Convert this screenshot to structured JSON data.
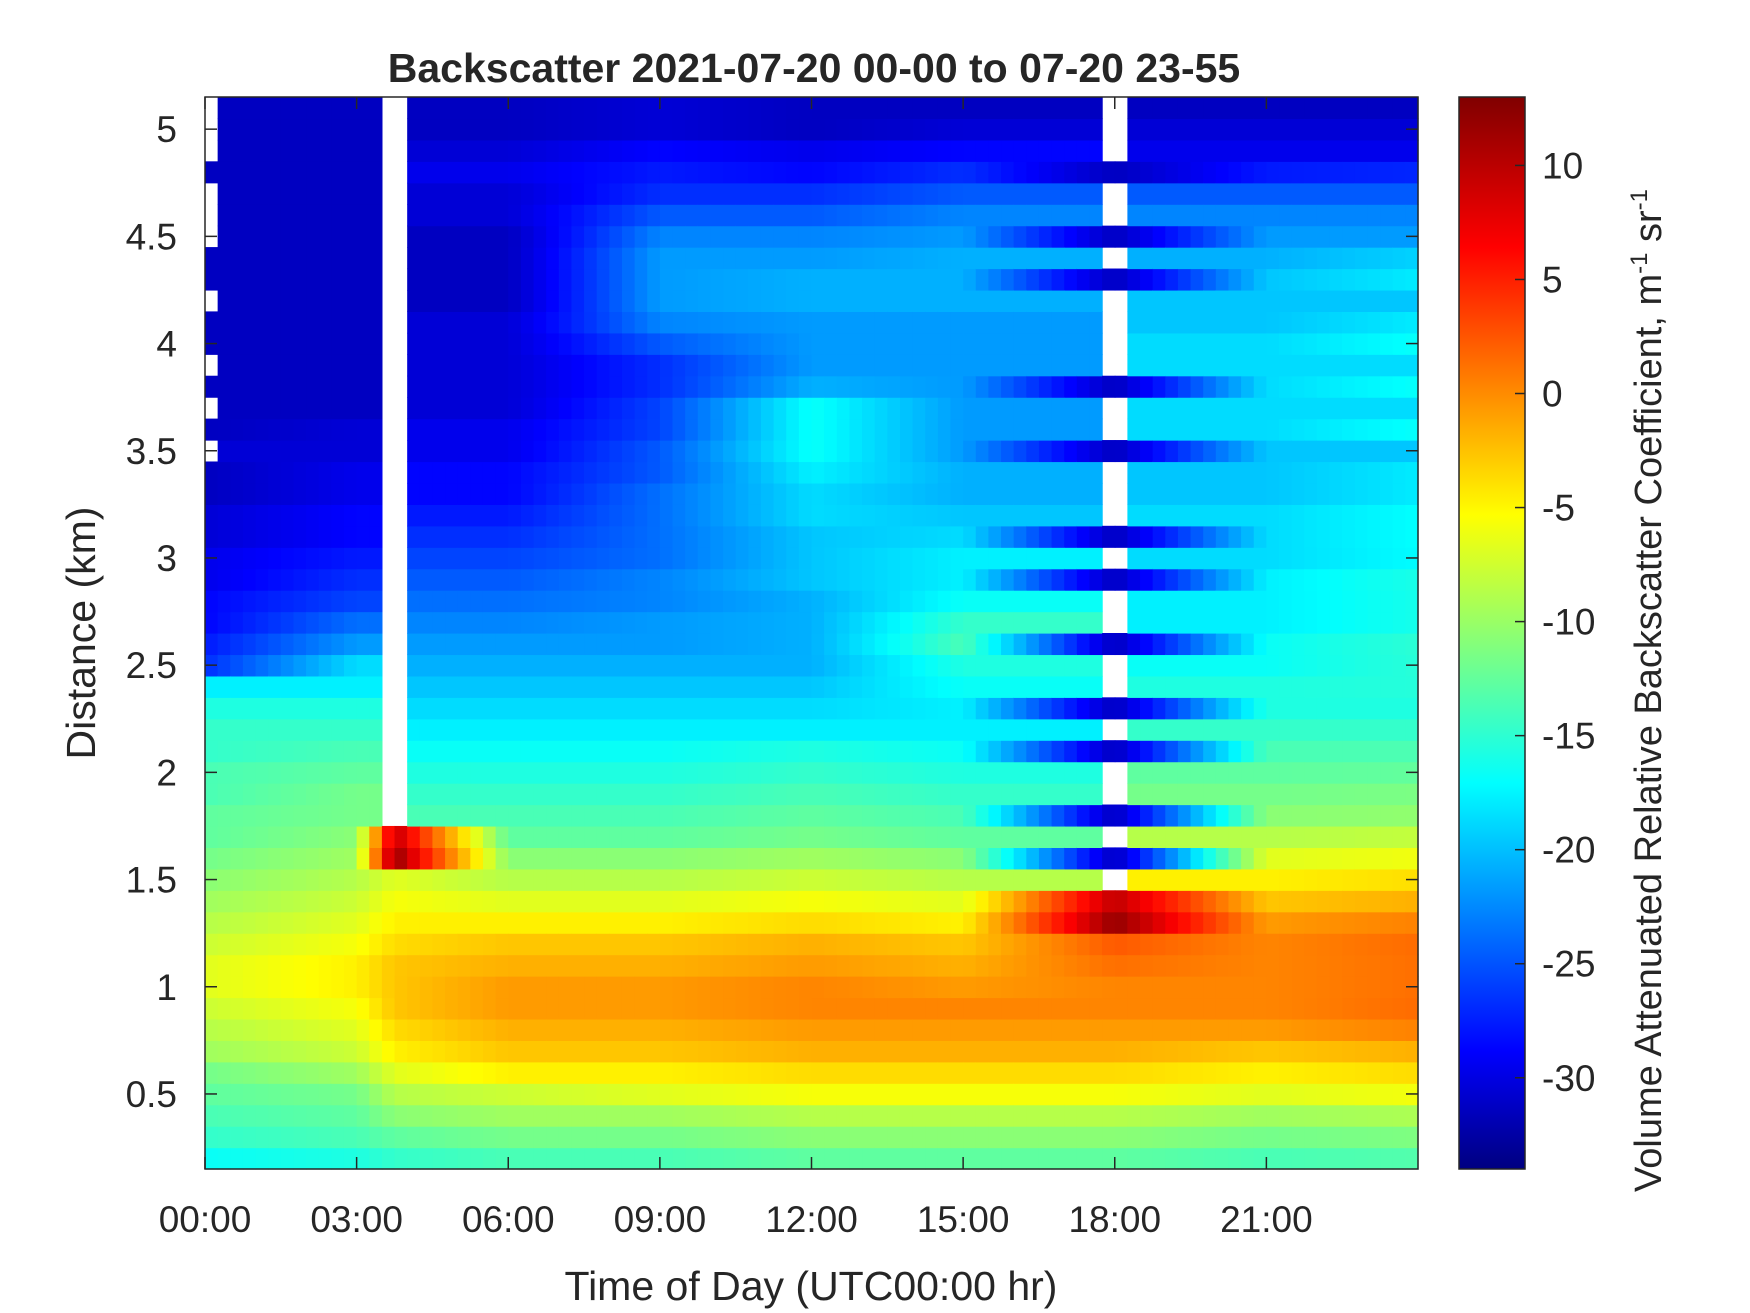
{
  "chart_data": {
    "type": "heatmap",
    "title": "Backscatter 2021-07-20 00-00 to 07-20 23-55",
    "xlabel": "Time of Day (UTC00:00 hr)",
    "ylabel": "Distance (km)",
    "colorbar_label_main": "Volume Attenuated Relative Backscatter Coefficient, m",
    "colorbar_label_exp1": "-1",
    "colorbar_label_mid": " sr",
    "colorbar_label_exp2": "-1",
    "xlim": [
      0,
      24
    ],
    "ylim": [
      0.15,
      5.15
    ],
    "clim": [
      -34,
      13
    ],
    "colormap": "jet",
    "x_ticks": [
      {
        "value": 0,
        "label": "00:00"
      },
      {
        "value": 3,
        "label": "03:00"
      },
      {
        "value": 6,
        "label": "06:00"
      },
      {
        "value": 9,
        "label": "09:00"
      },
      {
        "value": 12,
        "label": "12:00"
      },
      {
        "value": 15,
        "label": "15:00"
      },
      {
        "value": 18,
        "label": "18:00"
      },
      {
        "value": 21,
        "label": "21:00"
      }
    ],
    "y_ticks": [
      {
        "value": 0.5,
        "label": "0.5"
      },
      {
        "value": 1,
        "label": "1"
      },
      {
        "value": 1.5,
        "label": "1.5"
      },
      {
        "value": 2,
        "label": "2"
      },
      {
        "value": 2.5,
        "label": "2.5"
      },
      {
        "value": 3,
        "label": "3"
      },
      {
        "value": 3.5,
        "label": "3.5"
      },
      {
        "value": 4,
        "label": "4"
      },
      {
        "value": 4.5,
        "label": "4.5"
      },
      {
        "value": 5,
        "label": "5"
      }
    ],
    "colorbar_ticks": [
      {
        "value": 10,
        "label": "10"
      },
      {
        "value": 5,
        "label": "5"
      },
      {
        "value": 0,
        "label": "0"
      },
      {
        "value": -5,
        "label": "-5"
      },
      {
        "value": -10,
        "label": "-10"
      },
      {
        "value": -15,
        "label": "-15"
      },
      {
        "value": -20,
        "label": "-20"
      },
      {
        "value": -25,
        "label": "-25"
      },
      {
        "value": -30,
        "label": "-30"
      }
    ],
    "time_step_hr": 0.25,
    "range_gates_km": [
      0.15,
      0.25,
      0.35,
      0.45,
      0.55,
      0.65,
      0.75,
      0.85,
      0.95,
      1.05,
      1.15,
      1.25,
      1.35,
      1.45,
      1.55,
      1.65,
      1.75,
      1.85,
      1.95,
      2.05,
      2.15,
      2.25,
      2.35,
      2.45,
      2.55,
      2.65,
      2.75,
      2.85,
      2.95,
      3.05,
      3.15,
      3.25,
      3.35,
      3.45,
      3.55,
      3.65,
      3.75,
      3.85,
      3.95,
      4.05,
      4.15,
      4.25,
      4.35,
      4.45,
      4.55,
      4.65,
      4.75,
      4.85,
      4.95,
      5.05
    ],
    "profiles": [
      {
        "time_hr": 0,
        "values_db": [
          -16,
          -14,
          -13,
          -12,
          -11,
          -9,
          -8,
          -7,
          -6,
          -6,
          -7,
          -8,
          -9,
          -10,
          -11,
          -12,
          -12,
          -13,
          -13,
          -14,
          -14,
          -15,
          -17,
          -26,
          -27,
          -28,
          -28,
          -29,
          -29,
          -30,
          -30,
          -31,
          -31,
          null,
          -31,
          null,
          -31,
          null,
          -31,
          -31,
          null,
          -31,
          -31,
          null,
          null,
          null,
          -31,
          null,
          null,
          null
        ]
      },
      {
        "time_hr": 3,
        "values_db": [
          -15,
          -13,
          -12,
          -11,
          -9,
          -7,
          -6,
          -5,
          -4,
          -4,
          -5,
          -6,
          -7,
          -8,
          -9,
          -10,
          -11,
          -11,
          -12,
          -13,
          -14,
          -15,
          -17,
          -18,
          -21,
          -23,
          -25,
          -26,
          -27,
          -28,
          -28,
          -29,
          -29,
          -30,
          -30,
          -31,
          -31,
          -31,
          -31,
          -31,
          -31,
          -31,
          -31,
          -31,
          -31,
          -31,
          -31,
          -31,
          -31,
          -31
        ]
      },
      {
        "time_hr": 3.75,
        "values_db": [
          -14,
          -12,
          -10,
          -8,
          -6,
          -4,
          -3,
          -2,
          -2,
          -2,
          -3,
          -4,
          -5,
          -6,
          12,
          10,
          null,
          null,
          null,
          null,
          null,
          null,
          null,
          null,
          null,
          null,
          null,
          null,
          null,
          null,
          null,
          null,
          null,
          null,
          null,
          null,
          null,
          null,
          null,
          null,
          null,
          null,
          null,
          null,
          null,
          null,
          null,
          null,
          null,
          null
        ]
      },
      {
        "time_hr": 6,
        "values_db": [
          -13,
          -11,
          -9,
          -7,
          -4,
          -2,
          -1,
          0,
          0,
          -1,
          -2,
          -4,
          -6,
          -8,
          -10,
          -12,
          -13,
          -14,
          -15,
          -16,
          -17,
          -18,
          -19,
          -20,
          -21,
          -22,
          -23,
          -24,
          -25,
          -26,
          -27,
          -28,
          -28,
          -29,
          -29,
          -30,
          -30,
          -30,
          -30,
          -30,
          -31,
          -31,
          -31,
          -31,
          -30,
          -30,
          -29,
          -30,
          -31,
          -31
        ]
      },
      {
        "time_hr": 9,
        "values_db": [
          -13,
          -11,
          -9,
          -6,
          -4,
          -2,
          -1,
          0,
          0,
          -1,
          -2,
          -4,
          -6,
          -8,
          -10,
          -12,
          -13,
          -14,
          -15,
          -16,
          -17,
          -18,
          -19,
          -20,
          -21,
          -21,
          -22,
          -22,
          -23,
          -23,
          -23,
          -23,
          -24,
          -24,
          -25,
          -25,
          -26,
          -26,
          -24,
          -22,
          -21,
          -21,
          -21,
          -22,
          -24,
          -26,
          -27,
          -28,
          -30,
          -30
        ]
      },
      {
        "time_hr": 12,
        "values_db": [
          -12,
          -10,
          -8,
          -5,
          -3,
          -1,
          0,
          1,
          1,
          0,
          -1,
          -3,
          -5,
          -7,
          -9,
          -11,
          -12,
          -13,
          -14,
          -15,
          -17,
          -18,
          -19,
          -20,
          -20,
          -20,
          -20,
          -19,
          -19,
          -19,
          -18,
          -18,
          -17,
          -16,
          -16,
          -16,
          -20,
          -21,
          -21,
          -21,
          -20,
          -20,
          -21,
          -22,
          -24,
          -26,
          -28,
          -29,
          -31,
          -31
        ]
      },
      {
        "time_hr": 15,
        "values_db": [
          -12,
          -10,
          -8,
          -5,
          -3,
          -1,
          0,
          1,
          0,
          -1,
          -2,
          -4,
          -6,
          -8,
          -10,
          -12,
          -13,
          -14,
          -15,
          -16,
          -17,
          -17,
          -16,
          -15,
          -13,
          -14,
          -16,
          -17,
          -17,
          -18,
          -19,
          -20,
          -20,
          -21,
          -21,
          -21,
          -21,
          -21,
          -21,
          -21,
          -20,
          -20,
          -20,
          -21,
          -22,
          -24,
          -26,
          -28,
          -30,
          -31
        ]
      },
      {
        "time_hr": 18,
        "values_db": [
          -12,
          -10,
          -8,
          -5,
          -3,
          -1,
          0,
          1,
          1,
          2,
          3,
          12,
          10,
          null,
          -31,
          null,
          -31,
          null,
          null,
          -31,
          null,
          -31,
          null,
          null,
          -31,
          null,
          null,
          -31,
          null,
          -31,
          null,
          null,
          null,
          -31,
          null,
          null,
          -31,
          null,
          null,
          null,
          null,
          -31,
          null,
          -31,
          null,
          null,
          -31,
          null,
          null,
          null
        ]
      },
      {
        "time_hr": 21,
        "values_db": [
          -13,
          -11,
          -9,
          -6,
          -4,
          -2,
          0,
          1,
          1,
          1,
          1,
          0,
          -2,
          -4,
          -6,
          -8,
          -10,
          -11,
          -12,
          -13,
          -14,
          -15,
          -15,
          -16,
          -16,
          -17,
          -17,
          -17,
          -18,
          -18,
          -18,
          -19,
          -19,
          -19,
          -18,
          -18,
          -18,
          -18,
          -18,
          -19,
          -19,
          -19,
          -20,
          -21,
          -22,
          -24,
          -27,
          -29,
          -30,
          -31
        ]
      }
    ]
  }
}
